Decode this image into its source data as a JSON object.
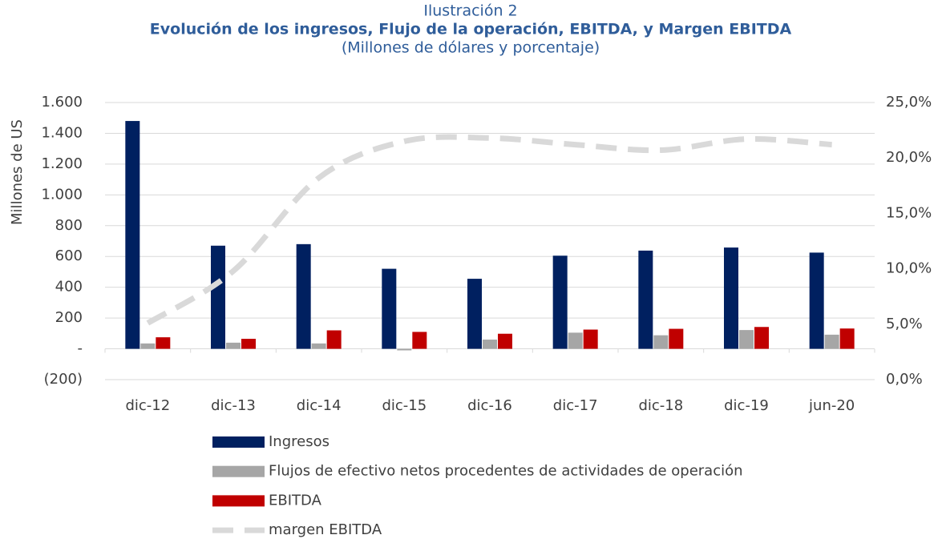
{
  "chart_data": {
    "type": "bar",
    "title": "Evolución de los ingresos, Flujo de la operación, EBITDA, y Margen EBITDA",
    "supertitle": "Ilustración 2",
    "subtitle": "(Millones de dólares y porcentaje)",
    "y_label": "Millones de US",
    "categories": [
      "dic-12",
      "dic-13",
      "dic-14",
      "dic-15",
      "dic-16",
      "dic-17",
      "dic-18",
      "dic-19",
      "jun-20"
    ],
    "series": [
      {
        "name": "Ingresos",
        "color": "#002060",
        "values": [
          1480,
          670,
          680,
          520,
          455,
          605,
          638,
          658,
          625
        ]
      },
      {
        "name": "Flujos de efectivo netos procedentes de actividades de operación",
        "color": "#a6a6a6",
        "values": [
          35,
          40,
          35,
          -10,
          60,
          105,
          88,
          122,
          92
        ]
      },
      {
        "name": "EBITDA",
        "color": "#c00000",
        "values": [
          75,
          65,
          120,
          110,
          98,
          125,
          130,
          142,
          132
        ]
      },
      {
        "name": "margen EBITDA",
        "color": "#d9d9d9",
        "type": "line",
        "axis": "y2",
        "values": [
          5.1,
          9.8,
          18.2,
          21.5,
          21.8,
          21.2,
          20.7,
          21.7,
          21.2
        ]
      }
    ],
    "ylim": [
      -200,
      1600
    ],
    "yticks": [
      {
        "value": -200,
        "label": "(200)"
      },
      {
        "value": 0,
        "label": "-"
      },
      200,
      400,
      600,
      800,
      {
        "value": 1000,
        "label": "1.000"
      },
      {
        "value": 1200,
        "label": "1.200"
      },
      {
        "value": 1400,
        "label": "1.400"
      },
      {
        "value": 1600,
        "label": "1.600"
      }
    ],
    "y2lim": [
      0,
      25
    ],
    "y2ticks": [
      {
        "value": 0,
        "label": "0,0%"
      },
      {
        "value": 5,
        "label": "5,0%"
      },
      {
        "value": 10,
        "label": "10,0%"
      },
      {
        "value": 15,
        "label": "15,0%"
      },
      {
        "value": 20,
        "label": "20,0%"
      },
      {
        "value": 25,
        "label": "25,0%"
      }
    ],
    "grid": true,
    "legend": "bottom"
  }
}
